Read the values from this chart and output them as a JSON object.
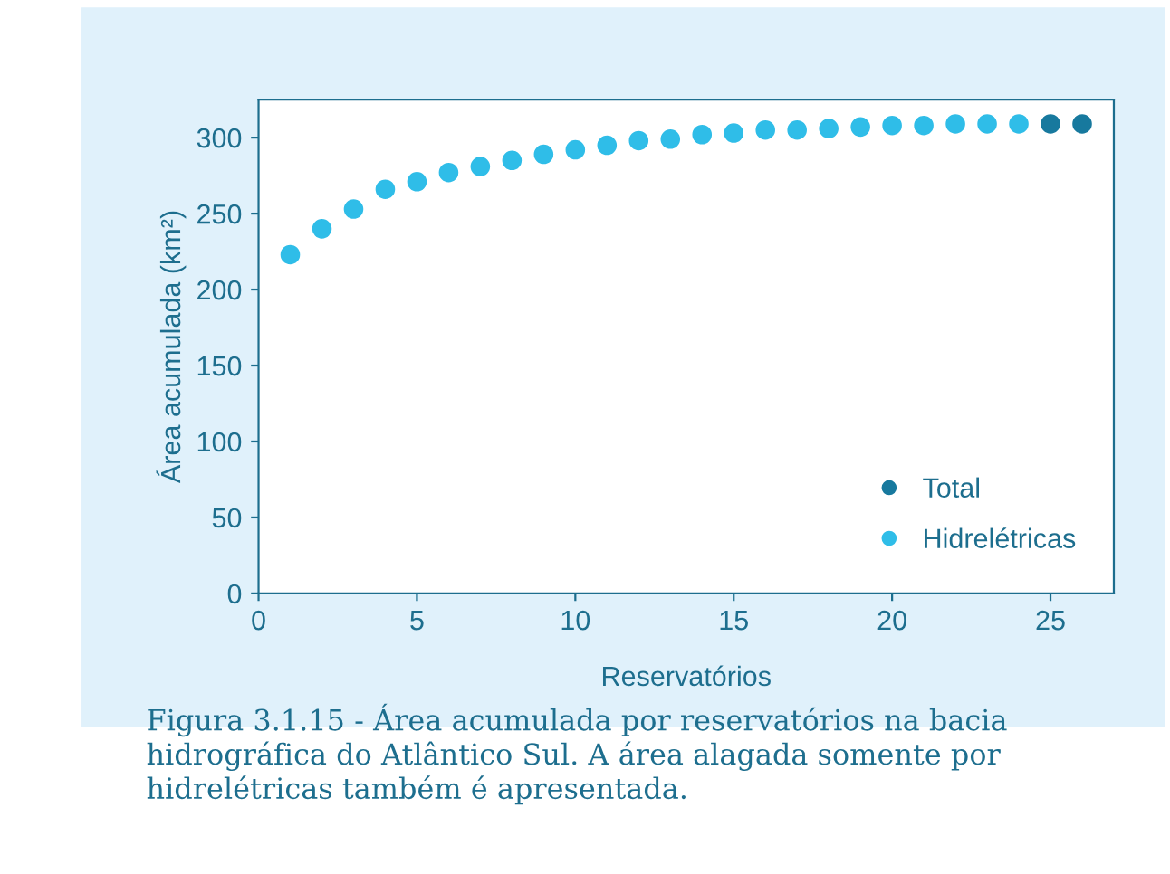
{
  "chart_data": {
    "type": "scatter",
    "xlabel": "Reservatórios",
    "ylabel": "Área acumulada (km²)",
    "x": [
      1,
      2,
      3,
      4,
      5,
      6,
      7,
      8,
      9,
      10,
      11,
      12,
      13,
      14,
      15,
      16,
      17,
      18,
      19,
      20,
      21,
      22,
      23,
      24,
      25,
      26
    ],
    "series": [
      {
        "name": "Total",
        "color": "#17799e",
        "values": [
          null,
          null,
          null,
          null,
          null,
          null,
          null,
          null,
          null,
          null,
          null,
          null,
          null,
          null,
          null,
          null,
          null,
          null,
          null,
          null,
          null,
          null,
          null,
          null,
          309,
          309
        ]
      },
      {
        "name": "Hidrelétricas",
        "color": "#2fbde8",
        "values": [
          223,
          240,
          253,
          266,
          271,
          277,
          281,
          285,
          289,
          292,
          295,
          298,
          299,
          302,
          303,
          305,
          305,
          306,
          307,
          308,
          308,
          309,
          309,
          309,
          null,
          null
        ]
      }
    ],
    "xlim": [
      0,
      27
    ],
    "xticks": [
      0,
      5,
      10,
      15,
      20,
      25
    ],
    "ylim": [
      0,
      325
    ],
    "yticks": [
      0,
      50,
      100,
      150,
      200,
      250,
      300
    ],
    "marker": "circle",
    "grid": false,
    "legend": "bottom right",
    "annotations": [
      "Figura 3.1.15 - Área acumulada por reservatórios na bacia hidrográfica do Atlântico Sul. A área alagada somente por hidrelétricas também é apresentada."
    ]
  }
}
